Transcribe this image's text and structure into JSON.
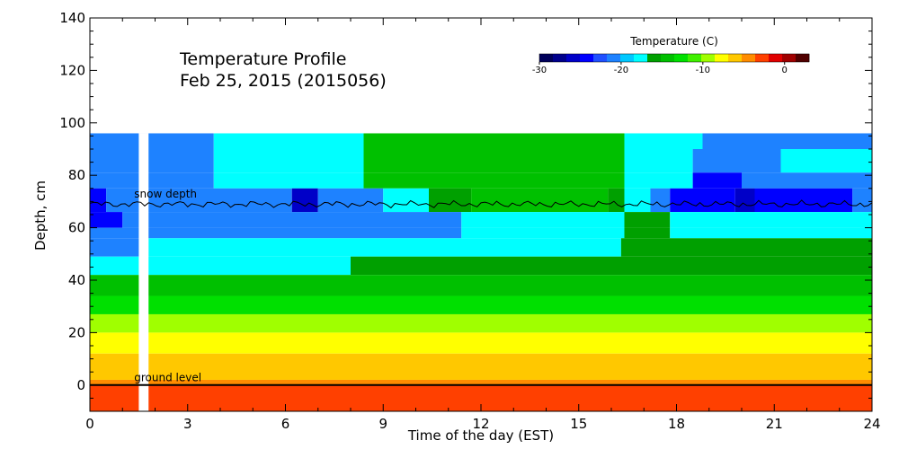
{
  "chart_data": {
    "type": "heatmap",
    "title": "Temperature Profile",
    "subtitle": "Feb 25, 2015 (2015056)",
    "xlabel": "Time of the day (EST)",
    "ylabel": "Depth, cm",
    "xlim": [
      0,
      24
    ],
    "ylim": [
      -10,
      140
    ],
    "x_ticks": [
      0,
      3,
      6,
      9,
      12,
      15,
      18,
      21,
      24
    ],
    "y_ticks": [
      0,
      20,
      40,
      60,
      80,
      100,
      120,
      140
    ],
    "colorbar": {
      "title": "Temperature (C)",
      "range": [
        -30,
        3
      ],
      "ticks": [
        -30,
        -20,
        -10,
        0
      ],
      "colors": [
        "#00005a",
        "#00008c",
        "#0000c8",
        "#0000ff",
        "#2050ff",
        "#1e82ff",
        "#00c8ff",
        "#00ffff",
        "#00a000",
        "#00c000",
        "#00e000",
        "#40f000",
        "#a0ff00",
        "#ffff00",
        "#ffc800",
        "#ff8c00",
        "#ff4000",
        "#e00000",
        "#a00000",
        "#500000"
      ]
    },
    "data_gap": [
      1.5,
      1.8
    ],
    "rows": [
      {
        "depth": [
          90,
          96
        ],
        "segments": [
          [
            0,
            3.8,
            "#1e82ff"
          ],
          [
            3.8,
            8.4,
            "#00ffff"
          ],
          [
            8.4,
            16.4,
            "#00c000"
          ],
          [
            16.4,
            18.8,
            "#00ffff"
          ],
          [
            18.8,
            24,
            "#1e82ff"
          ]
        ]
      },
      {
        "depth": [
          81,
          90
        ],
        "segments": [
          [
            0,
            3.8,
            "#1e82ff"
          ],
          [
            3.8,
            8.4,
            "#00ffff"
          ],
          [
            8.4,
            16.4,
            "#00c000"
          ],
          [
            16.4,
            18.5,
            "#00ffff"
          ],
          [
            18.5,
            21.2,
            "#1e82ff"
          ],
          [
            21.2,
            24,
            "#00ffff"
          ]
        ]
      },
      {
        "depth": [
          75,
          81
        ],
        "segments": [
          [
            0,
            3.8,
            "#1e82ff"
          ],
          [
            3.8,
            8.4,
            "#00ffff"
          ],
          [
            8.4,
            16.4,
            "#00c000"
          ],
          [
            16.4,
            18.5,
            "#00ffff"
          ],
          [
            18.5,
            20,
            "#0000ff"
          ],
          [
            20,
            24,
            "#1e82ff"
          ]
        ]
      },
      {
        "depth": [
          66,
          75
        ],
        "segments": [
          [
            0,
            0.5,
            "#0000ff"
          ],
          [
            0.5,
            6.2,
            "#1e82ff"
          ],
          [
            6.2,
            7,
            "#0000c8"
          ],
          [
            7,
            9,
            "#1e82ff"
          ],
          [
            9,
            10.4,
            "#00ffff"
          ],
          [
            10.4,
            11.7,
            "#00a000"
          ],
          [
            11.7,
            15.9,
            "#00c000"
          ],
          [
            15.9,
            16.4,
            "#00a000"
          ],
          [
            16.4,
            17.2,
            "#00ffff"
          ],
          [
            17.2,
            17.8,
            "#1e82ff"
          ],
          [
            17.8,
            19.8,
            "#0000ff"
          ],
          [
            19.8,
            20.4,
            "#0000c8"
          ],
          [
            20.4,
            23.4,
            "#0000ff"
          ],
          [
            23.4,
            24,
            "#1e82ff"
          ]
        ]
      },
      {
        "depth": [
          60,
          66
        ],
        "segments": [
          [
            0,
            1,
            "#0000ff"
          ],
          [
            1,
            11.4,
            "#1e82ff"
          ],
          [
            11.4,
            16.4,
            "#00ffff"
          ],
          [
            16.4,
            17.8,
            "#00a000"
          ],
          [
            17.8,
            24,
            "#00ffff"
          ]
        ]
      },
      {
        "depth": [
          56,
          60
        ],
        "segments": [
          [
            0,
            11.4,
            "#1e82ff"
          ],
          [
            11.4,
            16.4,
            "#00ffff"
          ],
          [
            16.4,
            17.8,
            "#00a000"
          ],
          [
            17.8,
            24,
            "#00ffff"
          ]
        ]
      },
      {
        "depth": [
          49,
          56
        ],
        "segments": [
          [
            0,
            1.8,
            "#1e82ff"
          ],
          [
            1.8,
            16.3,
            "#00ffff"
          ],
          [
            16.3,
            24,
            "#00a000"
          ]
        ]
      },
      {
        "depth": [
          42,
          49
        ],
        "segments": [
          [
            0,
            8,
            "#00ffff"
          ],
          [
            8,
            24,
            "#00a000"
          ]
        ]
      },
      {
        "depth": [
          34,
          42
        ],
        "segments": [
          [
            0,
            24,
            "#00c000"
          ]
        ]
      },
      {
        "depth": [
          27,
          34
        ],
        "segments": [
          [
            0,
            24,
            "#00e000"
          ]
        ]
      },
      {
        "depth": [
          20,
          27
        ],
        "segments": [
          [
            0,
            24,
            "#a0ff00"
          ]
        ]
      },
      {
        "depth": [
          12,
          20
        ],
        "segments": [
          [
            0,
            24,
            "#ffff00"
          ]
        ]
      },
      {
        "depth": [
          2,
          12
        ],
        "segments": [
          [
            0,
            24,
            "#ffc800"
          ]
        ]
      },
      {
        "depth": [
          0,
          2
        ],
        "segments": [
          [
            0,
            24,
            "#ff8c00"
          ]
        ]
      },
      {
        "depth": [
          -10,
          0
        ],
        "segments": [
          [
            0,
            24,
            "#ff4000"
          ]
        ]
      }
    ],
    "annotations": [
      {
        "text": "snow depth",
        "x": 1,
        "y": 71.5
      },
      {
        "text": "ground level",
        "x": 1,
        "y": 1.5
      }
    ],
    "snow_depth_cm": 69,
    "ground_level_cm": 0
  }
}
